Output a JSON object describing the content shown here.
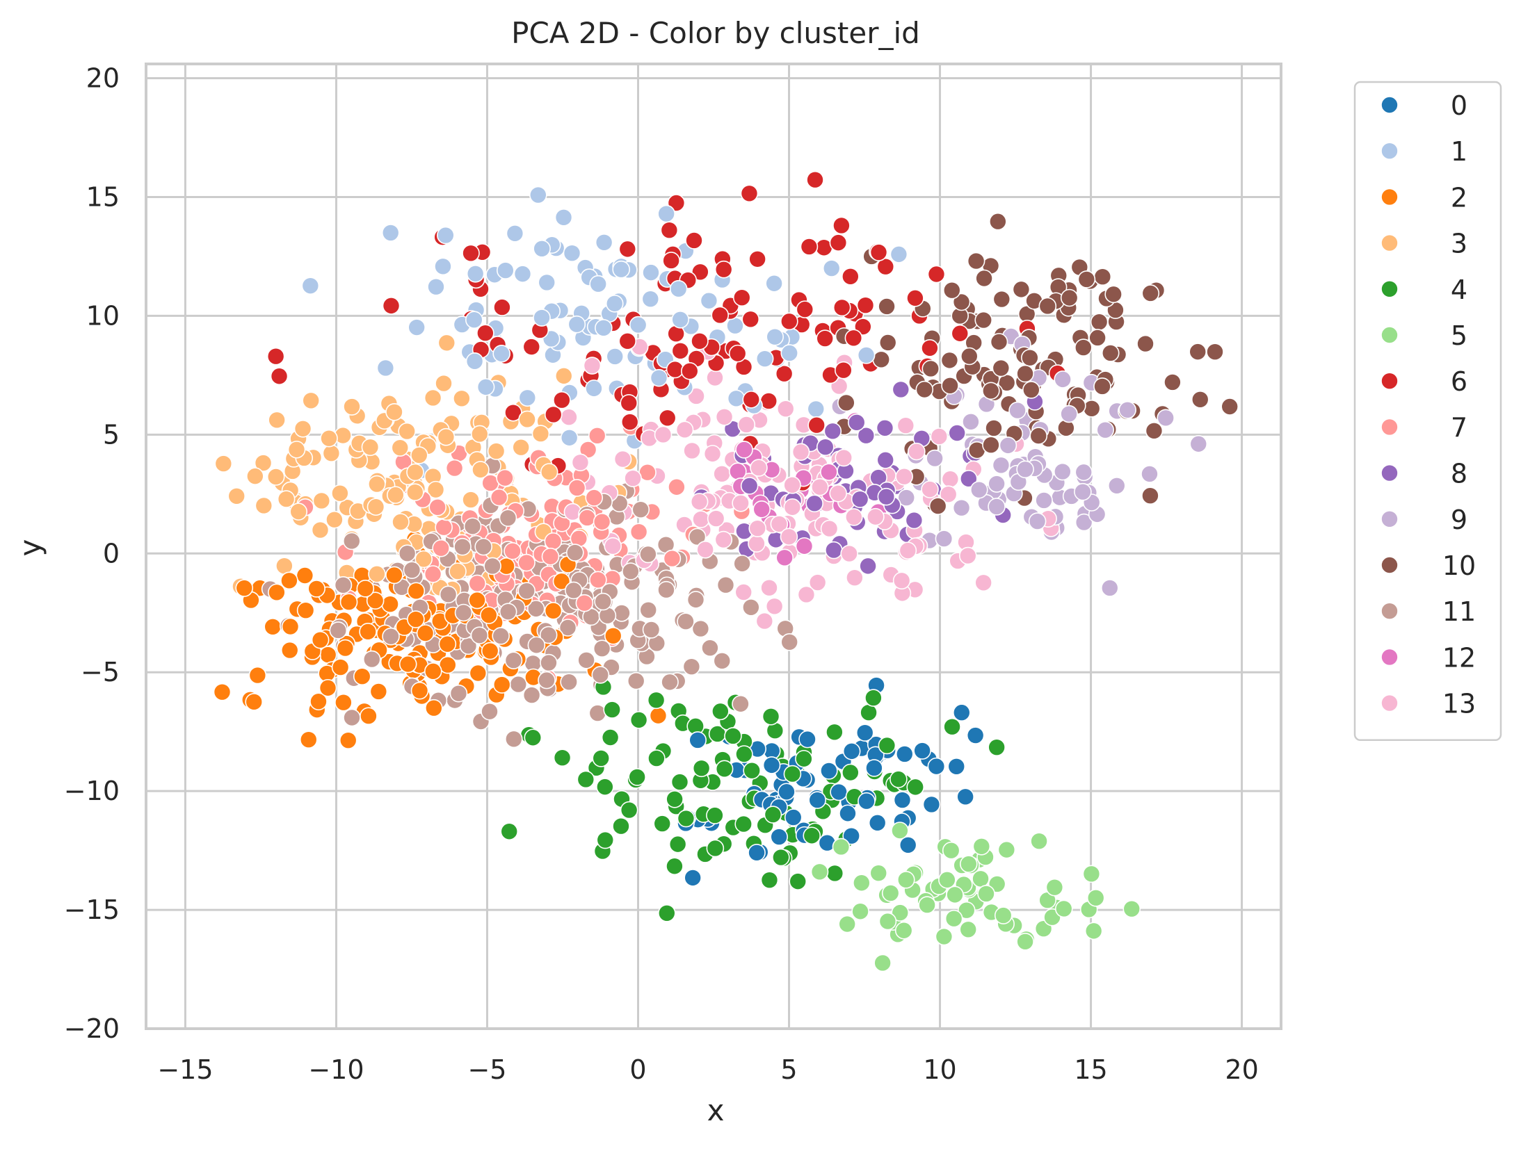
{
  "chart_data": {
    "type": "scatter",
    "title": "PCA 2D - Color by cluster_id",
    "xlabel": "x",
    "ylabel": "y",
    "xlim": [
      -16.3,
      21.3
    ],
    "ylim": [
      -20.0,
      20.6
    ],
    "xticks": [
      -15,
      -10,
      -5,
      0,
      5,
      10,
      15,
      20
    ],
    "yticks": [
      -20,
      -15,
      -10,
      -5,
      0,
      5,
      10,
      15,
      20
    ],
    "xtick_labels": [
      "−15",
      "−10",
      "−5",
      "0",
      "5",
      "10",
      "15",
      "20"
    ],
    "ytick_labels": [
      "−20",
      "−15",
      "−10",
      "−5",
      "0",
      "5",
      "10",
      "15",
      "20"
    ],
    "grid": true,
    "legend_position": "outside-right-top",
    "series": [
      {
        "name": "0",
        "color": "#1f77b4",
        "centroid": [
          6.5,
          -9.8
        ],
        "spread": [
          3.2,
          2.2
        ],
        "count": 70,
        "seed": 101
      },
      {
        "name": "1",
        "color": "#aec7e8",
        "centroid": [
          -1.5,
          10.0
        ],
        "spread": [
          5.0,
          3.0
        ],
        "count": 95,
        "seed": 202
      },
      {
        "name": "2",
        "color": "#ff7f0e",
        "centroid": [
          -7.5,
          -3.5
        ],
        "spread": [
          3.6,
          2.3
        ],
        "count": 170,
        "seed": 303
      },
      {
        "name": "3",
        "color": "#ffbb78",
        "centroid": [
          -7.5,
          3.0
        ],
        "spread": [
          3.8,
          3.0
        ],
        "count": 150,
        "seed": 404
      },
      {
        "name": "4",
        "color": "#2ca02c",
        "centroid": [
          3.0,
          -10.0
        ],
        "spread": [
          4.0,
          2.8
        ],
        "count": 100,
        "seed": 505
      },
      {
        "name": "5",
        "color": "#98df8a",
        "centroid": [
          11.0,
          -14.5
        ],
        "spread": [
          2.8,
          1.8
        ],
        "count": 65,
        "seed": 606
      },
      {
        "name": "6",
        "color": "#d62728",
        "centroid": [
          2.5,
          10.0
        ],
        "spread": [
          6.0,
          3.5
        ],
        "count": 110,
        "seed": 707
      },
      {
        "name": "7",
        "color": "#ff9896",
        "centroid": [
          -3.5,
          0.5
        ],
        "spread": [
          3.2,
          2.6
        ],
        "count": 140,
        "seed": 808
      },
      {
        "name": "8",
        "color": "#9467bd",
        "centroid": [
          7.5,
          3.0
        ],
        "spread": [
          3.5,
          2.2
        ],
        "count": 60,
        "seed": 909
      },
      {
        "name": "9",
        "color": "#c5b0d5",
        "centroid": [
          13.0,
          3.5
        ],
        "spread": [
          2.8,
          2.5
        ],
        "count": 70,
        "seed": 1010
      },
      {
        "name": "10",
        "color": "#8c564b",
        "centroid": [
          12.5,
          8.5
        ],
        "spread": [
          3.5,
          3.3
        ],
        "count": 120,
        "seed": 1111
      },
      {
        "name": "11",
        "color": "#c49c94",
        "centroid": [
          -3.0,
          -2.0
        ],
        "spread": [
          4.2,
          2.8
        ],
        "count": 230,
        "seed": 1212
      },
      {
        "name": "12",
        "color": "#e377c2",
        "centroid": [
          5.0,
          2.5
        ],
        "spread": [
          2.5,
          2.0
        ],
        "count": 25,
        "seed": 1313
      },
      {
        "name": "13",
        "color": "#f7b6d2",
        "centroid": [
          5.0,
          2.5
        ],
        "spread": [
          4.5,
          3.2
        ],
        "count": 140,
        "seed": 1414
      }
    ]
  },
  "legend": {
    "items": [
      "0",
      "1",
      "2",
      "3",
      "4",
      "5",
      "6",
      "7",
      "8",
      "9",
      "10",
      "11",
      "12",
      "13"
    ]
  }
}
